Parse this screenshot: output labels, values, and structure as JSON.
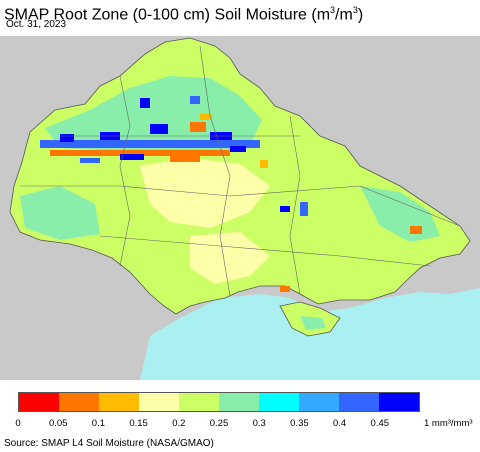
{
  "header": {
    "title_main": "SMAP Root Zone (0-100 cm) Soil Moisture (m",
    "title_sup1": "3",
    "title_mid": "/m",
    "title_sup2": "3",
    "title_end": ")",
    "date": "Oct. 31, 2023"
  },
  "legend": {
    "colors": [
      "#ff0000",
      "#ff7700",
      "#ffbb00",
      "#ffffaa",
      "#ccff66",
      "#88eeaa",
      "#00ffff",
      "#33aaff",
      "#3366ff",
      "#0000ff"
    ],
    "ticks": [
      "0",
      "0.05",
      "0.1",
      "0.15",
      "0.2",
      "0.25",
      "0.3",
      "0.35",
      "0.4",
      "0.45"
    ],
    "unit": "1 mm³/mm³"
  },
  "footer": {
    "source": "Source: SMAP L4 Soil Moisture (NASA/GMAO)"
  },
  "map_colors": {
    "background_land": "#c9c9c9",
    "sea": "#aaf0f0",
    "lake": "#ffffff",
    "borders": "#555555",
    "dry": "#ffffaa",
    "mid": "#ccff66",
    "moist": "#88eeaa",
    "wet": "#3366ff",
    "very_wet": "#0000ff",
    "orange": "#ff7700"
  }
}
